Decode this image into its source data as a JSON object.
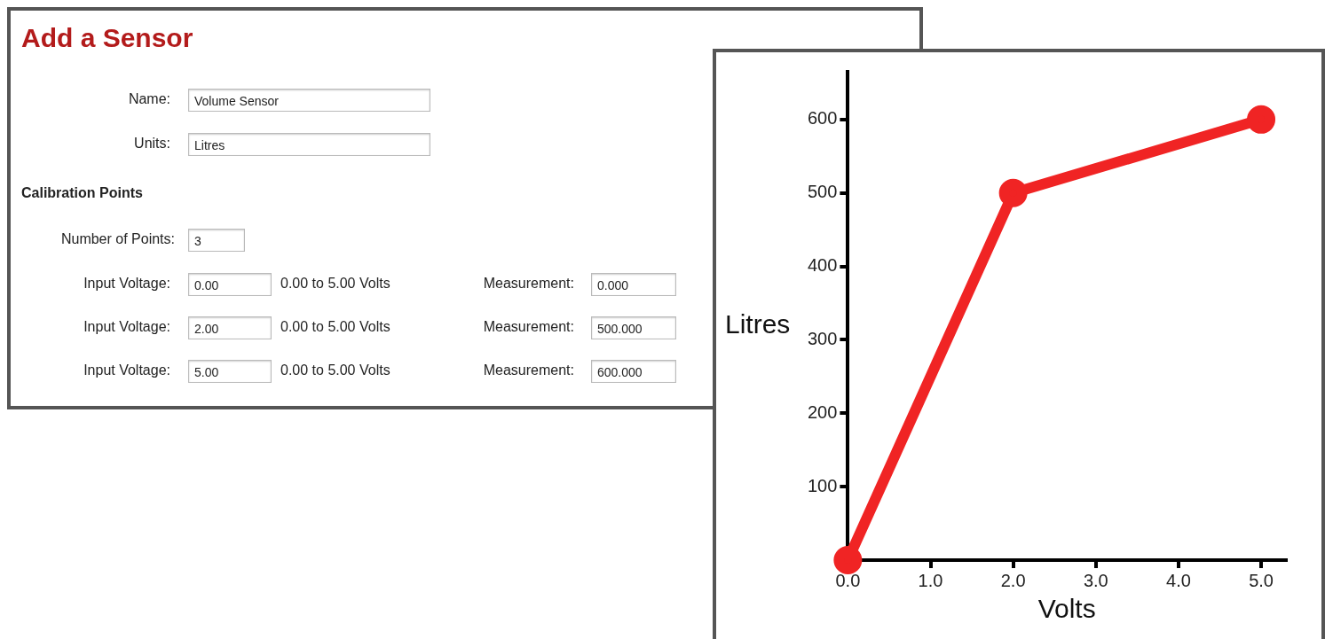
{
  "chart_data": [
    {
      "type": "other",
      "title": "Add a Sensor",
      "annotations": [
        "Name:",
        "Volume Sensor",
        "Units:",
        "Litres",
        "Calibration Points",
        "Number of Points:",
        "3",
        "Input Voltage:",
        "0.00",
        "0.00 to 5.00 Volts",
        "Measurement:",
        "0.000",
        "Input Voltage:",
        "2.00",
        "0.00 to 5.00 Volts",
        "Measurement:",
        "500.000",
        "Input Voltage:",
        "5.00",
        "0.00 to 5.00 Volts",
        "Measurement:",
        "600.000"
      ]
    },
    {
      "type": "line",
      "xlabel": "Volts",
      "ylabel": "Litres",
      "x": [
        0,
        2,
        5
      ],
      "series": [
        {
          "color": "#f02424",
          "values": [
            0,
            500,
            600
          ]
        }
      ],
      "xlim": [
        0,
        5.3
      ],
      "xticks": [
        {
          "value": 0,
          "label": "0.0"
        },
        {
          "value": 1,
          "label": "1.0"
        },
        {
          "value": 2,
          "label": "2.0"
        },
        {
          "value": 3,
          "label": "3.0"
        },
        {
          "value": 4,
          "label": "4.0"
        },
        {
          "value": 5,
          "label": "5.0"
        }
      ],
      "ylim": [
        0,
        665
      ],
      "yticks": [
        100,
        200,
        300,
        400,
        500,
        600
      ],
      "grid": false,
      "legend": false,
      "marker": "circle",
      "line_style": "solid"
    }
  ]
}
